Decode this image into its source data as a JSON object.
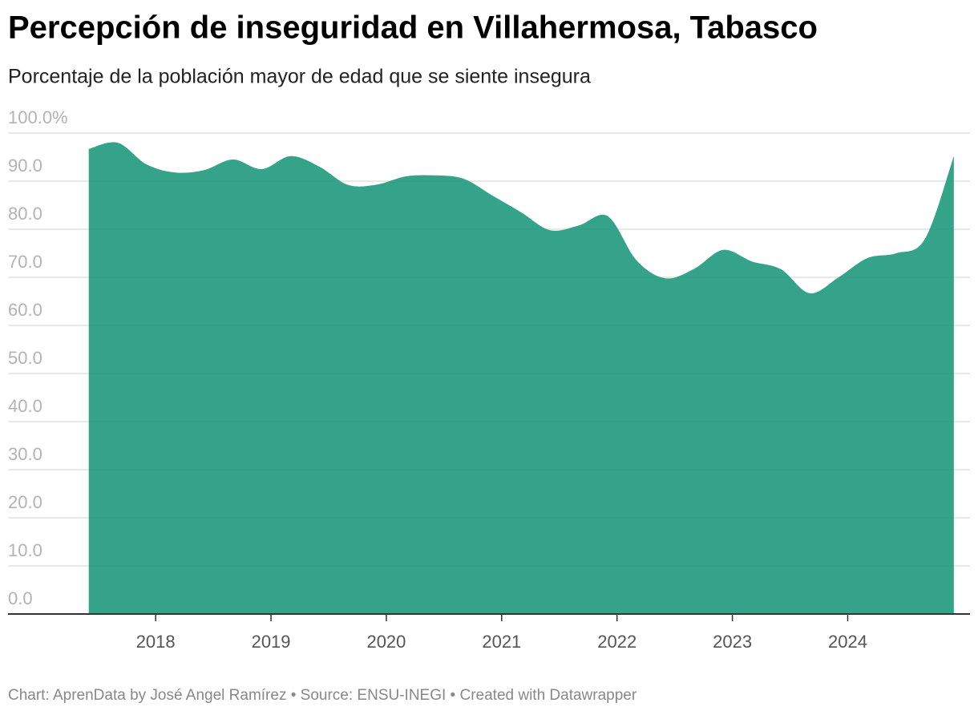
{
  "chart_data": {
    "type": "area",
    "title": "Percepción de inseguridad en Villahermosa, Tabasco",
    "subtitle": "Porcentaje de la población mayor de edad que se siente insegura",
    "footer": "Chart: AprenData by José Angel Ramírez • Source: ENSU-INEGI • Created with Datawrapper",
    "x": [
      2017.42,
      2017.67,
      2017.92,
      2018.17,
      2018.42,
      2018.67,
      2018.92,
      2019.17,
      2019.42,
      2019.67,
      2019.92,
      2020.17,
      2020.42,
      2020.67,
      2020.92,
      2021.17,
      2021.42,
      2021.67,
      2021.92,
      2022.17,
      2022.42,
      2022.67,
      2022.92,
      2023.17,
      2023.42,
      2023.67,
      2023.92,
      2024.17,
      2024.42,
      2024.67,
      2024.92
    ],
    "values": [
      96.7,
      98.0,
      93.5,
      91.8,
      92.3,
      94.5,
      92.5,
      95.2,
      93.0,
      89.2,
      89.3,
      91.0,
      91.2,
      90.5,
      87.0,
      83.5,
      79.8,
      80.8,
      82.7,
      73.5,
      69.8,
      71.8,
      75.7,
      73.3,
      71.7,
      66.7,
      70.0,
      74.0,
      75.0,
      78.0,
      95.2
    ],
    "color": "#2a9d84",
    "xlim": [
      2016.72,
      2025.06
    ],
    "xticks": [
      2018,
      2019,
      2020,
      2021,
      2022,
      2023,
      2024
    ],
    "ylim": [
      0,
      100
    ],
    "yticks": [
      {
        "value": 0,
        "label": "0.0"
      },
      {
        "value": 10,
        "label": "10.0"
      },
      {
        "value": 20,
        "label": "20.0"
      },
      {
        "value": 30,
        "label": "30.0"
      },
      {
        "value": 40,
        "label": "40.0"
      },
      {
        "value": 50,
        "label": "50.0"
      },
      {
        "value": 60,
        "label": "60.0"
      },
      {
        "value": 70,
        "label": "70.0"
      },
      {
        "value": 80,
        "label": "80.0"
      },
      {
        "value": 90,
        "label": "90.0"
      },
      {
        "value": 100,
        "label": "100.0%"
      }
    ],
    "grid": true
  }
}
